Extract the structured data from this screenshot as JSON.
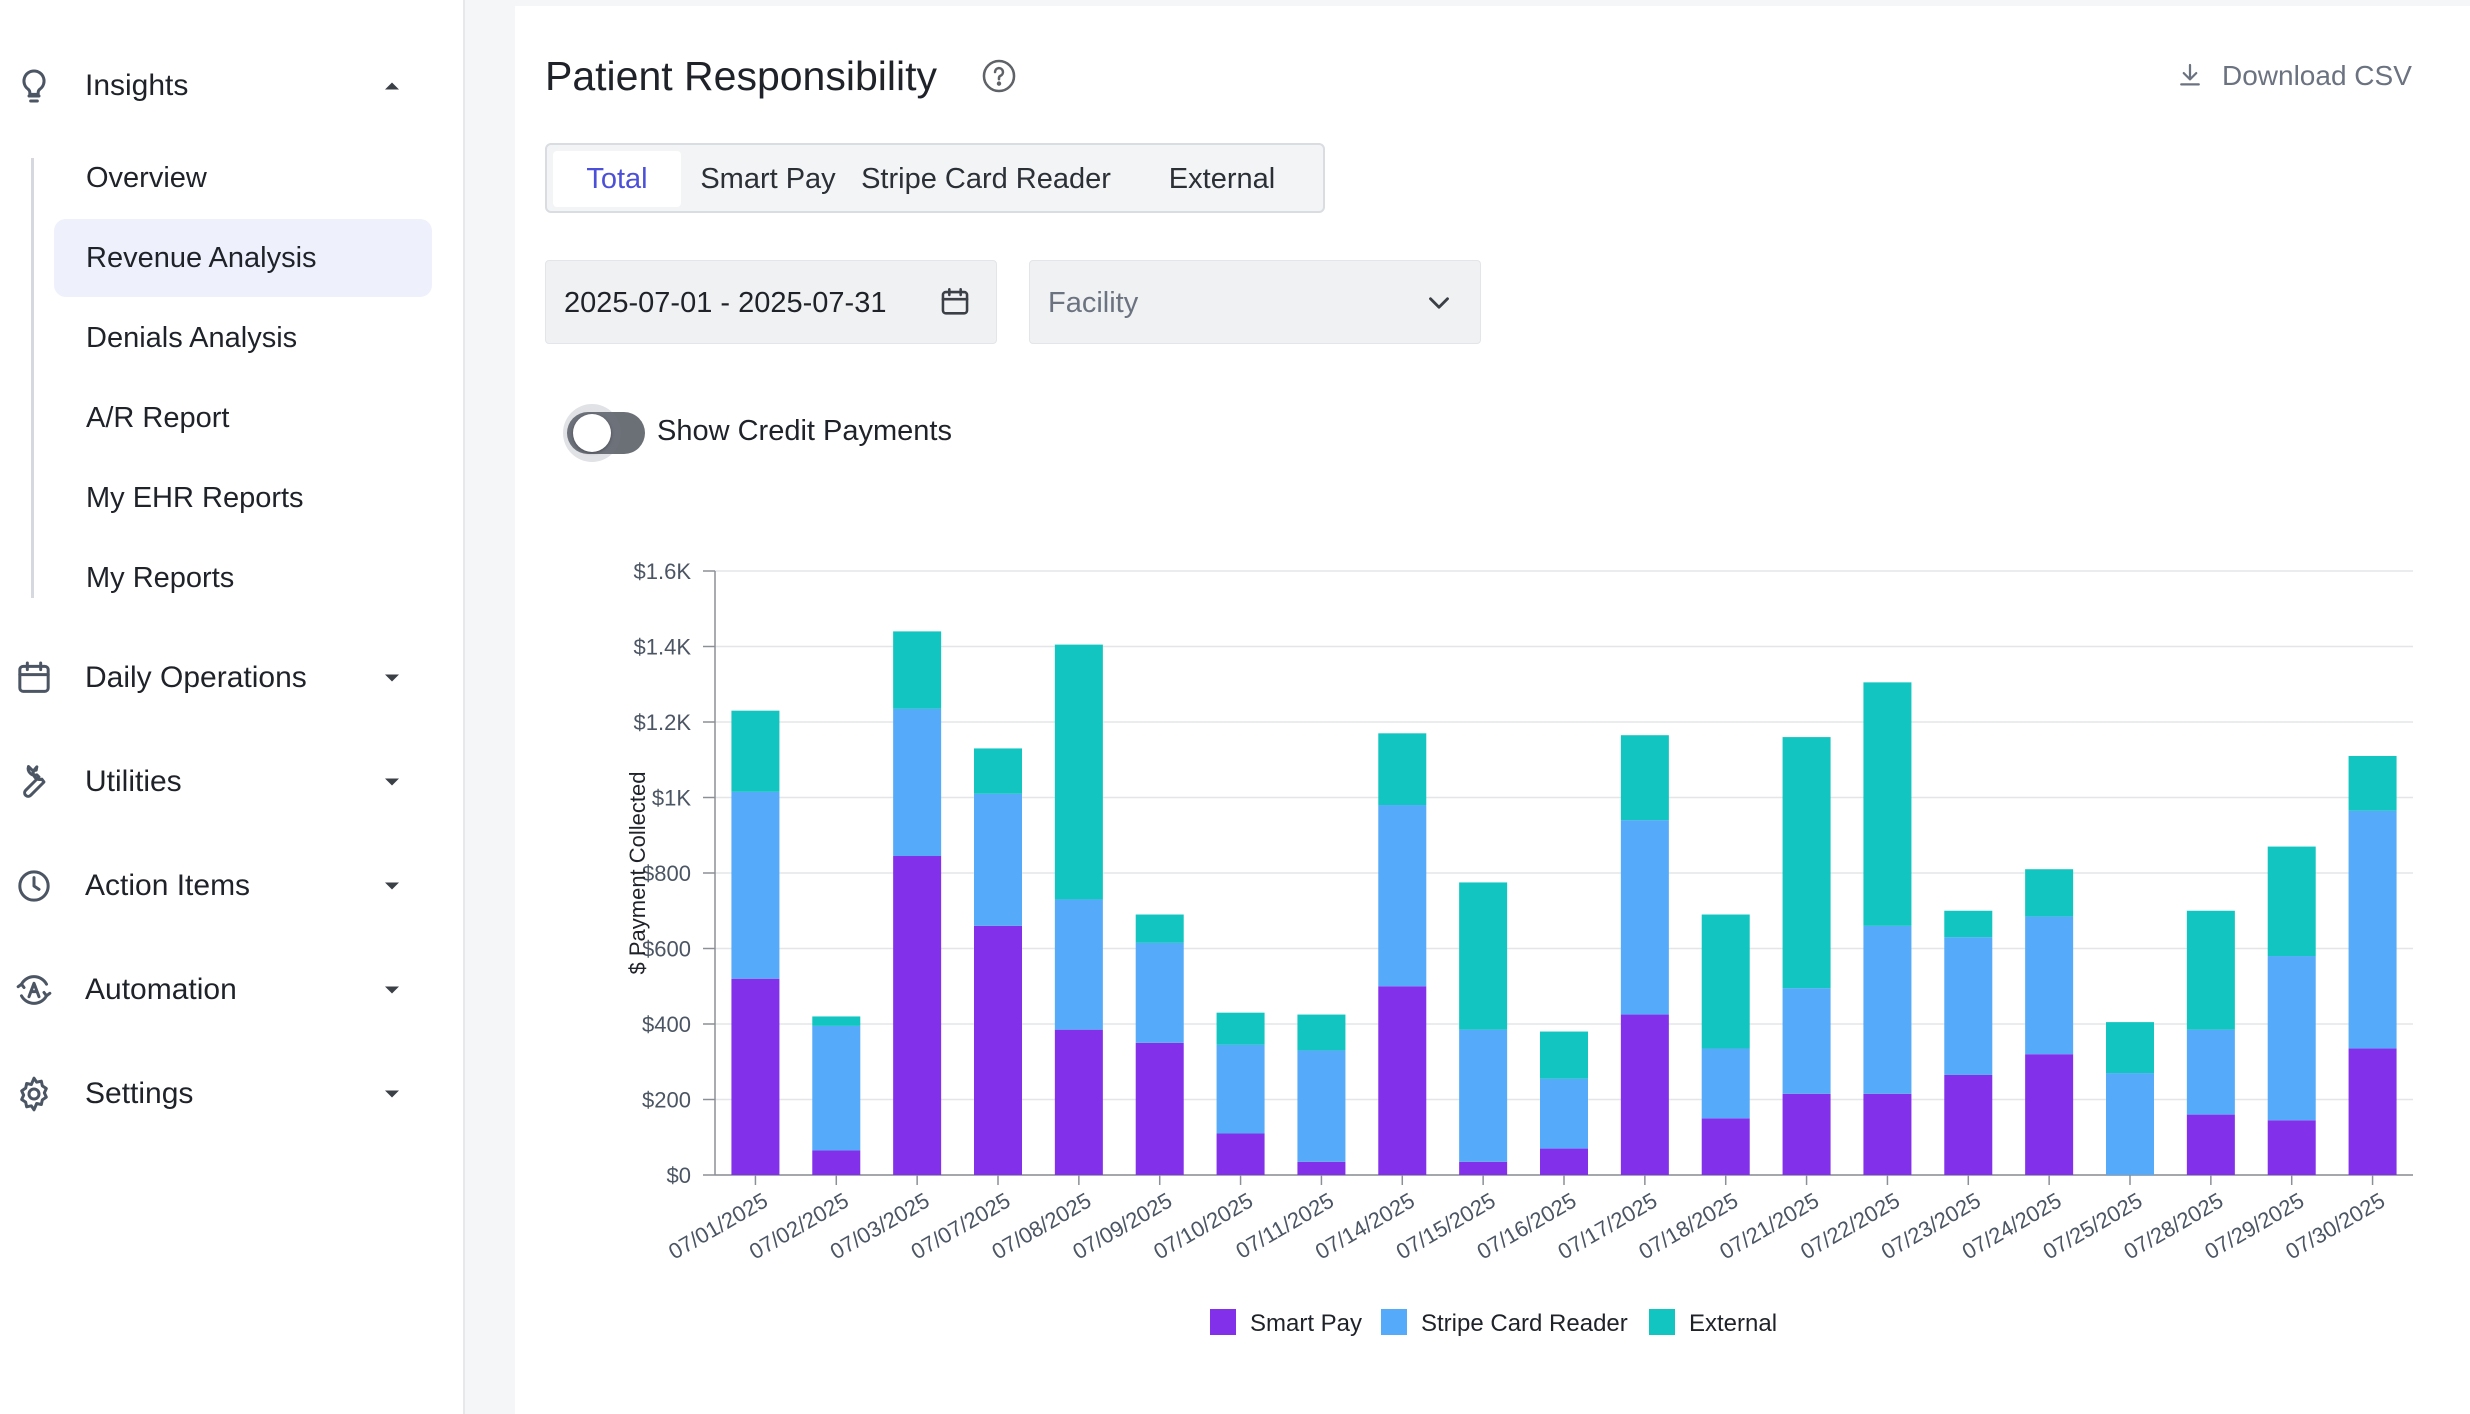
{
  "sidebar": {
    "insights": {
      "label": "Insights",
      "icon": "lightbulb-icon"
    },
    "sub_items": [
      {
        "label": "Overview"
      },
      {
        "label": "Revenue Analysis",
        "active": true
      },
      {
        "label": "Denials Analysis"
      },
      {
        "label": "A/R Report"
      },
      {
        "label": "My EHR Reports"
      },
      {
        "label": "My Reports"
      }
    ],
    "sections": [
      {
        "label": "Daily Operations",
        "icon": "calendar-icon"
      },
      {
        "label": "Utilities",
        "icon": "wrench-icon"
      },
      {
        "label": "Action Items",
        "icon": "clock-icon"
      },
      {
        "label": "Automation",
        "icon": "automation-icon"
      },
      {
        "label": "Settings",
        "icon": "gear-icon"
      }
    ]
  },
  "main": {
    "title": "Patient Responsibility",
    "download_label": "Download CSV",
    "tabs": [
      {
        "label": "Total",
        "active": true
      },
      {
        "label": "Smart Pay"
      },
      {
        "label": "Stripe Card Reader"
      },
      {
        "label": "External"
      }
    ],
    "date_range": "2025-07-01 - 2025-07-31",
    "facility_placeholder": "Facility",
    "show_credit_label": "Show Credit Payments",
    "show_credit_on": false
  },
  "colors": {
    "accent": "#4c4fd8",
    "smart_pay": "#8230ea",
    "stripe": "#55aaf9",
    "external": "#12c5c0"
  },
  "chart_data": {
    "type": "bar",
    "stacked": true,
    "categories": [
      "07/01/2025",
      "07/02/2025",
      "07/03/2025",
      "07/07/2025",
      "07/08/2025",
      "07/09/2025",
      "07/10/2025",
      "07/11/2025",
      "07/14/2025",
      "07/15/2025",
      "07/16/2025",
      "07/17/2025",
      "07/18/2025",
      "07/21/2025",
      "07/22/2025",
      "07/23/2025",
      "07/24/2025",
      "07/25/2025",
      "07/28/2025",
      "07/29/2025",
      "07/30/2025"
    ],
    "series": [
      {
        "name": "Smart Pay",
        "color": "#8230ea",
        "values": [
          520,
          65,
          845,
          660,
          385,
          350,
          110,
          35,
          500,
          35,
          70,
          425,
          150,
          215,
          215,
          265,
          320,
          0,
          160,
          145,
          335
        ]
      },
      {
        "name": "Stripe Card Reader",
        "color": "#55aaf9",
        "values": [
          495,
          330,
          390,
          350,
          345,
          265,
          235,
          295,
          480,
          350,
          185,
          515,
          185,
          280,
          445,
          365,
          365,
          270,
          225,
          435,
          630
        ]
      },
      {
        "name": "External",
        "color": "#12c5c0",
        "values": [
          215,
          25,
          205,
          120,
          675,
          75,
          85,
          95,
          190,
          390,
          125,
          225,
          355,
          665,
          645,
          70,
          125,
          135,
          315,
          290,
          145
        ]
      }
    ],
    "ylabel": "$ Payment Collected",
    "xlabel": "",
    "ylim": [
      0,
      1600
    ],
    "yticks": [
      0,
      200,
      400,
      600,
      800,
      1000,
      1200,
      1400,
      1600
    ],
    "ytick_labels": [
      "$0",
      "$200",
      "$400",
      "$600",
      "$800",
      "$1K",
      "$1.2K",
      "$1.4K",
      "$1.6K"
    ],
    "grid": true,
    "legend_position": "bottom-center"
  }
}
